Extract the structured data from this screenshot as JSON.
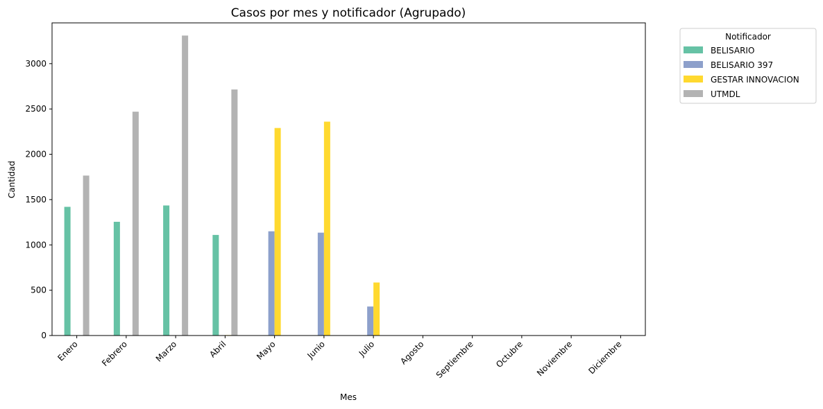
{
  "chart_data": {
    "type": "bar",
    "title": "Casos por mes y notificador (Agrupado)",
    "xlabel": "Mes",
    "ylabel": "Cantidad",
    "categories": [
      "Enero",
      "Febrero",
      "Marzo",
      "Abril",
      "Mayo",
      "Junio",
      "Julio",
      "Agosto",
      "Septiembre",
      "Octubre",
      "Noviembre",
      "Diciembre"
    ],
    "yticks": [
      0,
      500,
      1000,
      1500,
      2000,
      2500,
      3000
    ],
    "ylim": [
      0,
      3450
    ],
    "grid": false,
    "legend": {
      "title": "Notificador",
      "placement": "outside-top-right"
    },
    "series": [
      {
        "name": "BELISARIO",
        "color": "#66c2a5",
        "values": [
          1420,
          1255,
          1435,
          1110,
          0,
          0,
          0,
          0,
          0,
          0,
          0,
          0
        ]
      },
      {
        "name": "BELISARIO 397",
        "color": "#8da0cb",
        "values": [
          0,
          0,
          0,
          0,
          1150,
          1135,
          320,
          0,
          0,
          0,
          0,
          0
        ]
      },
      {
        "name": "GESTAR INNOVACION",
        "color": "#ffd92f",
        "values": [
          0,
          0,
          0,
          5,
          2290,
          2360,
          585,
          0,
          0,
          0,
          0,
          0
        ]
      },
      {
        "name": "UTMDL",
        "color": "#b3b3b3",
        "values": [
          1765,
          2470,
          3310,
          2715,
          0,
          0,
          0,
          0,
          0,
          0,
          0,
          0
        ]
      }
    ]
  }
}
